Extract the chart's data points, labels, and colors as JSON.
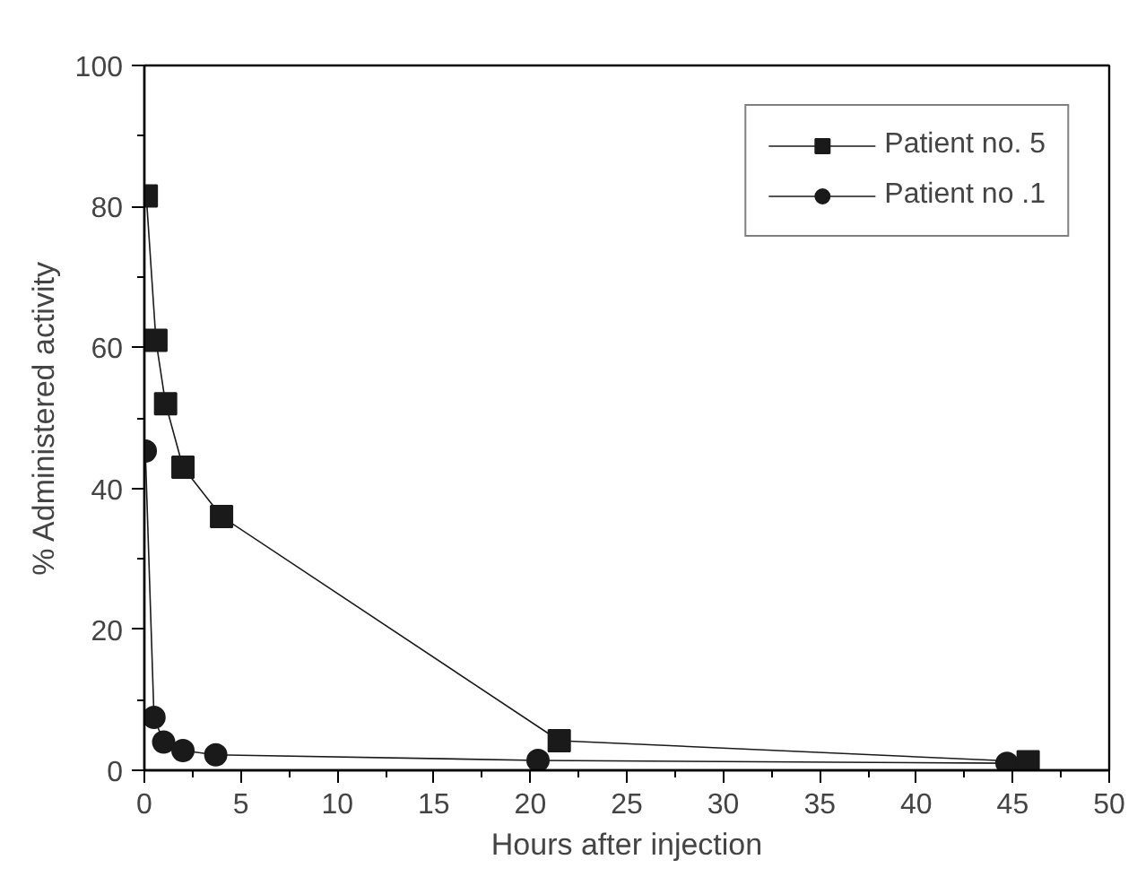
{
  "chart_data": {
    "type": "line",
    "xlabel": "Hours after injection",
    "ylabel": "% Administered activity",
    "xlim": [
      0,
      50
    ],
    "ylim": [
      0,
      100
    ],
    "xticks": [
      0,
      5,
      10,
      15,
      20,
      25,
      30,
      35,
      40,
      45,
      50
    ],
    "yticks": [
      0,
      20,
      40,
      60,
      80,
      100
    ],
    "grid": false,
    "legend": "top right",
    "series": [
      {
        "name": "Patient no. 5",
        "color": "#1a1a1a",
        "marker": "square",
        "x": [
          0.1,
          0.6,
          1.1,
          2,
          4,
          21.5,
          45.8
        ],
        "values": [
          81.5,
          61,
          52,
          43,
          36,
          4.2,
          1.2
        ]
      },
      {
        "name": "Patient no .1",
        "color": "#1a1a1a",
        "marker": "circle",
        "x": [
          0.05,
          0.5,
          1,
          2,
          3.7,
          20.4,
          44.7
        ],
        "values": [
          45.3,
          7.5,
          4,
          2.8,
          2.2,
          1.4,
          1.0
        ]
      }
    ]
  }
}
